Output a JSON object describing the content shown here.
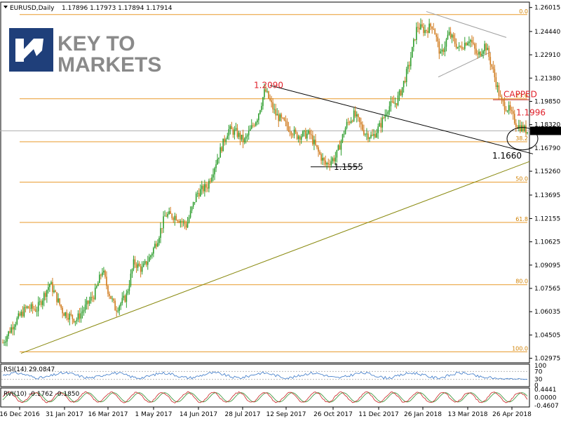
{
  "header": {
    "symbol": "EURUSD,Daily",
    "ohlc": "1.17896 1.17973 1.17894 1.17914"
  },
  "logo": {
    "line1": "KEY TO",
    "line2": "MARKETS"
  },
  "chart_data": {
    "type": "candlestick",
    "ylim": [
      1.0268,
      1.2637
    ],
    "price_ticks": [
      "1.26015",
      "1.24440",
      "1.22910",
      "1.21380",
      "1.19850",
      "1.18320",
      "1.16790",
      "1.15260",
      "1.13695",
      "1.12155",
      "1.10625",
      "1.09095",
      "1.07565",
      "1.06035",
      "1.04505",
      "1.02975"
    ],
    "x_labels": [
      "16 Dec 2016",
      "31 Jan 2017",
      "16 Mar 2017",
      "1 May 2017",
      "14 Jun 2017",
      "28 Jul 2017",
      "12 Sep 2017",
      "26 Oct 2017",
      "11 Dec 2017",
      "26 Jan 2018",
      "13 Mar 2018",
      "26 Apr 2018"
    ],
    "current_price": "1.17914",
    "anchors": [
      {
        "t": 0,
        "p": 1.04
      },
      {
        "t": 0.02,
        "p": 1.052
      },
      {
        "t": 0.045,
        "p": 1.063
      },
      {
        "t": 0.065,
        "p": 1.062
      },
      {
        "t": 0.09,
        "p": 1.079
      },
      {
        "t": 0.115,
        "p": 1.06
      },
      {
        "t": 0.14,
        "p": 1.055
      },
      {
        "t": 0.175,
        "p": 1.072
      },
      {
        "t": 0.19,
        "p": 1.088
      },
      {
        "t": 0.2,
        "p": 1.075
      },
      {
        "t": 0.215,
        "p": 1.062
      },
      {
        "t": 0.235,
        "p": 1.07
      },
      {
        "t": 0.25,
        "p": 1.093
      },
      {
        "t": 0.265,
        "p": 1.088
      },
      {
        "t": 0.28,
        "p": 1.096
      },
      {
        "t": 0.295,
        "p": 1.108
      },
      {
        "t": 0.31,
        "p": 1.124
      },
      {
        "t": 0.33,
        "p": 1.123
      },
      {
        "t": 0.35,
        "p": 1.117
      },
      {
        "t": 0.37,
        "p": 1.138
      },
      {
        "t": 0.39,
        "p": 1.143
      },
      {
        "t": 0.41,
        "p": 1.162
      },
      {
        "t": 0.43,
        "p": 1.18
      },
      {
        "t": 0.445,
        "p": 1.178
      },
      {
        "t": 0.46,
        "p": 1.172
      },
      {
        "t": 0.485,
        "p": 1.188
      },
      {
        "t": 0.5,
        "p": 1.206
      },
      {
        "t": 0.52,
        "p": 1.19
      },
      {
        "t": 0.54,
        "p": 1.183
      },
      {
        "t": 0.56,
        "p": 1.176
      },
      {
        "t": 0.585,
        "p": 1.177
      },
      {
        "t": 0.6,
        "p": 1.166
      },
      {
        "t": 0.615,
        "p": 1.157
      },
      {
        "t": 0.635,
        "p": 1.162
      },
      {
        "t": 0.655,
        "p": 1.183
      },
      {
        "t": 0.67,
        "p": 1.19
      },
      {
        "t": 0.69,
        "p": 1.178
      },
      {
        "t": 0.705,
        "p": 1.175
      },
      {
        "t": 0.72,
        "p": 1.183
      },
      {
        "t": 0.735,
        "p": 1.195
      },
      {
        "t": 0.75,
        "p": 1.198
      },
      {
        "t": 0.76,
        "p": 1.206
      },
      {
        "t": 0.775,
        "p": 1.223
      },
      {
        "t": 0.79,
        "p": 1.248
      },
      {
        "t": 0.805,
        "p": 1.245
      },
      {
        "t": 0.82,
        "p": 1.249
      },
      {
        "t": 0.835,
        "p": 1.228
      },
      {
        "t": 0.85,
        "p": 1.243
      },
      {
        "t": 0.87,
        "p": 1.233
      },
      {
        "t": 0.89,
        "p": 1.24
      },
      {
        "t": 0.905,
        "p": 1.228
      },
      {
        "t": 0.92,
        "p": 1.236
      },
      {
        "t": 0.935,
        "p": 1.218
      },
      {
        "t": 0.95,
        "p": 1.198
      },
      {
        "t": 0.965,
        "p": 1.193
      },
      {
        "t": 0.98,
        "p": 1.183
      },
      {
        "t": 1.0,
        "p": 1.179
      }
    ],
    "fibonacci": [
      {
        "label": "0.0",
        "price": 1.2555
      },
      {
        "label": "23.6",
        "price": 1.2002
      },
      {
        "label": "38.2",
        "price": 1.172
      },
      {
        "label": "50.0",
        "price": 1.1454
      },
      {
        "label": "61.8",
        "price": 1.119
      },
      {
        "label": "80.0",
        "price": 1.0781
      },
      {
        "label": "100.0",
        "price": 1.034
      }
    ],
    "annotations": [
      {
        "text": "1.2090",
        "color": "#e0202a"
      },
      {
        "text": "1.1555",
        "color": "#000000"
      },
      {
        "text": "1.1660",
        "color": "#000000"
      },
      {
        "text": "CAPPED",
        "color": "#e0202a"
      },
      {
        "text": "1.1996",
        "color": "#e0202a"
      }
    ]
  },
  "rsi": {
    "label": "RSI(14) 29.0847",
    "ticks": [
      "100",
      "70",
      "30",
      "0"
    ]
  },
  "rvi": {
    "label": "RVI(10) -0.1762 -0.1850",
    "ticks": [
      "0.4441",
      "0.0000",
      "-0.4607"
    ]
  },
  "colors": {
    "bull": "#2e9e2e",
    "bear": "#d07a1c",
    "fib": "#e89a2a",
    "trend_up": "#8a8a10",
    "trend_down": "#000000",
    "rsi_line": "#3a78c8",
    "rvi_main": "#c82020",
    "rvi_signal": "#2e8e2e"
  }
}
